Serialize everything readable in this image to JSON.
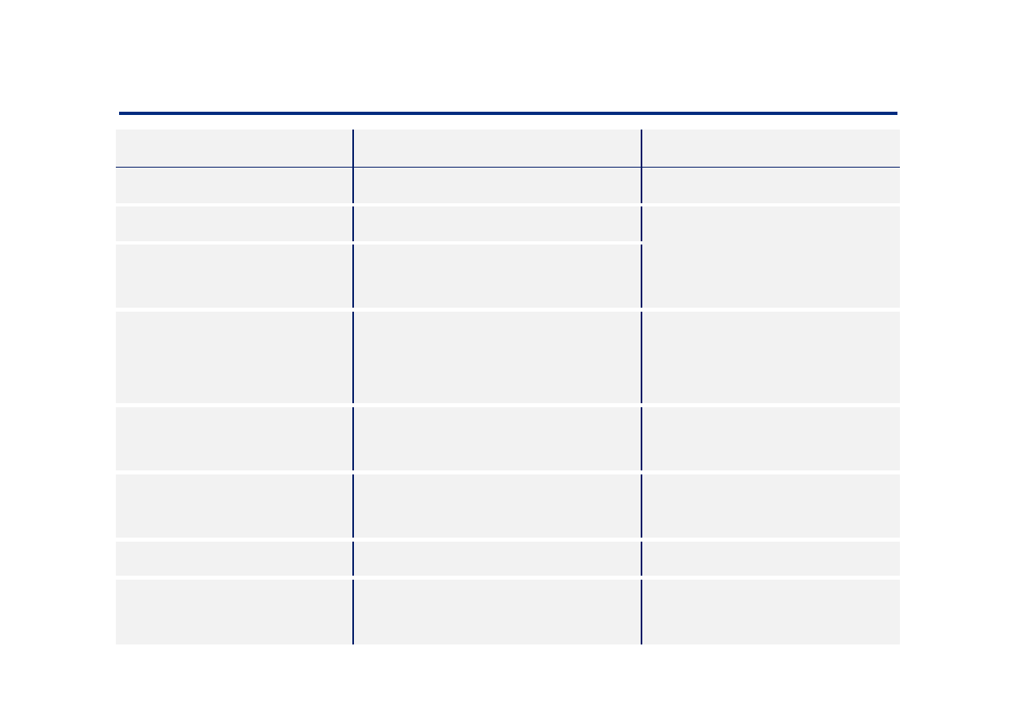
{
  "colors": {
    "title_rule": "#002b7f",
    "table_rules": "#001a66",
    "cell_fill": "#f2f2f2",
    "background": "#ffffff"
  }
}
